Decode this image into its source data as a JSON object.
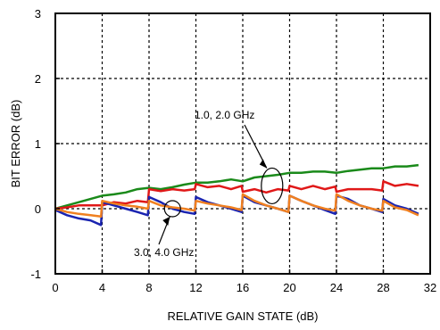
{
  "chart_data": {
    "type": "line",
    "title": "",
    "xlabel": "RELATIVE GAIN STATE (dB)",
    "ylabel": "BIT ERROR (dB)",
    "xlim": [
      0,
      32
    ],
    "ylim": [
      -1,
      3
    ],
    "xticks": [
      0,
      4,
      8,
      12,
      16,
      20,
      24,
      28,
      32
    ],
    "yticks": [
      -1,
      0,
      1,
      2,
      3
    ],
    "grid": true,
    "grid_style": "dotted",
    "legend": "none",
    "colors": {
      "green": "#1a8a1a",
      "red": "#e01818",
      "blue": "#1a24b0",
      "orange": "#f08020"
    },
    "annotations": [
      {
        "text": "1.0, 2.0 GHz",
        "points_to": {
          "x": 18.5,
          "y": 0.35
        }
      },
      {
        "text": "3.0, 4.0 GHz",
        "points_to": {
          "x": 10.0,
          "y": 0.0
        }
      }
    ],
    "series": [
      {
        "color": "green",
        "x": [
          0,
          1,
          2,
          3,
          4,
          5,
          6,
          7,
          8,
          9,
          10,
          11,
          12,
          13,
          14,
          15,
          16,
          17,
          18,
          19,
          20,
          21,
          22,
          23,
          24,
          25,
          26,
          27,
          28,
          29,
          30,
          31
        ],
        "y": [
          0.0,
          0.05,
          0.1,
          0.15,
          0.2,
          0.22,
          0.25,
          0.3,
          0.32,
          0.3,
          0.33,
          0.37,
          0.4,
          0.4,
          0.42,
          0.45,
          0.42,
          0.48,
          0.5,
          0.52,
          0.55,
          0.55,
          0.57,
          0.57,
          0.55,
          0.58,
          0.6,
          0.62,
          0.62,
          0.65,
          0.65,
          0.67
        ]
      },
      {
        "color": "red",
        "x": [
          0,
          1,
          2,
          3,
          4,
          5,
          6,
          7,
          7.9,
          8,
          9,
          10,
          11,
          11.9,
          12,
          13,
          14,
          15,
          15.9,
          16,
          17,
          18,
          19,
          19.9,
          20,
          21,
          22,
          23,
          23.9,
          24,
          25,
          26,
          27,
          27.9,
          28,
          29,
          30,
          31
        ],
        "y": [
          0.0,
          0.02,
          0.05,
          0.05,
          0.05,
          0.1,
          0.08,
          0.12,
          0.1,
          0.3,
          0.27,
          0.3,
          0.28,
          0.3,
          0.38,
          0.33,
          0.35,
          0.3,
          0.35,
          0.26,
          0.3,
          0.25,
          0.3,
          0.28,
          0.35,
          0.3,
          0.35,
          0.3,
          0.34,
          0.26,
          0.3,
          0.3,
          0.3,
          0.28,
          0.42,
          0.35,
          0.38,
          0.35
        ]
      },
      {
        "color": "blue",
        "x": [
          0,
          1,
          2,
          3,
          3.9,
          4,
          5,
          6,
          7,
          7.9,
          8,
          9,
          10,
          11,
          11.9,
          12,
          13,
          14,
          15,
          15.9,
          16,
          17,
          18,
          19,
          19.9,
          20,
          21,
          22,
          23,
          23.9,
          24,
          25,
          26,
          27,
          27.9,
          28,
          29,
          30,
          31
        ],
        "y": [
          -0.02,
          -0.1,
          -0.15,
          -0.18,
          -0.25,
          0.1,
          0.05,
          0.0,
          -0.05,
          -0.1,
          0.18,
          0.1,
          0.0,
          -0.05,
          -0.08,
          0.18,
          0.1,
          0.05,
          0.0,
          -0.05,
          0.2,
          0.1,
          0.05,
          0.0,
          -0.05,
          0.2,
          0.12,
          0.05,
          -0.02,
          -0.08,
          0.2,
          0.15,
          0.05,
          0.0,
          -0.05,
          0.15,
          0.05,
          0.0,
          -0.08
        ]
      },
      {
        "color": "orange",
        "x": [
          0,
          1,
          2,
          3,
          3.9,
          4,
          5,
          6,
          7,
          7.9,
          8,
          9,
          10,
          11,
          11.9,
          12,
          13,
          14,
          15,
          15.9,
          16,
          17,
          18,
          19,
          19.9,
          20,
          21,
          22,
          23,
          23.9,
          24,
          25,
          26,
          27,
          27.9,
          28,
          29,
          30,
          31
        ],
        "y": [
          0.0,
          -0.05,
          -0.08,
          -0.1,
          -0.12,
          0.12,
          0.08,
          0.05,
          0.03,
          0.0,
          0.12,
          0.05,
          0.02,
          0.0,
          -0.03,
          0.12,
          0.08,
          0.05,
          0.02,
          -0.02,
          0.22,
          0.12,
          0.05,
          0.0,
          -0.05,
          0.2,
          0.12,
          0.05,
          0.0,
          -0.03,
          0.22,
          0.12,
          0.05,
          0.0,
          -0.03,
          0.12,
          0.02,
          -0.02,
          -0.1
        ]
      }
    ]
  }
}
